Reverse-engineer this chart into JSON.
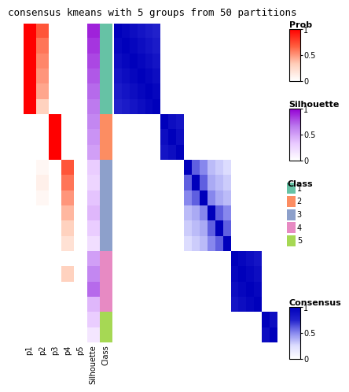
{
  "title": "consensus kmeans with 5 groups from 50 partitions",
  "n_samples": 21,
  "group_boundaries": [
    0,
    6,
    9,
    14,
    18,
    21
  ],
  "prob_values": [
    [
      1.0,
      1.0,
      1.0,
      1.0,
      1.0,
      1.0,
      0.0,
      0.0,
      0.0,
      0.0,
      0.0,
      0.0,
      0.0,
      0.0,
      0.0,
      0.0,
      0.0,
      0.0,
      0.0,
      0.0,
      0.0
    ],
    [
      0.7,
      0.6,
      0.55,
      0.5,
      0.45,
      0.3,
      0.0,
      0.0,
      0.0,
      0.05,
      0.1,
      0.05,
      0.0,
      0.0,
      0.0,
      0.0,
      0.0,
      0.0,
      0.0,
      0.0,
      0.0
    ],
    [
      0.0,
      0.0,
      0.0,
      0.0,
      0.0,
      0.0,
      1.0,
      1.0,
      1.0,
      0.0,
      0.0,
      0.0,
      0.0,
      0.0,
      0.0,
      0.0,
      0.0,
      0.0,
      0.0,
      0.0,
      0.0
    ],
    [
      0.0,
      0.0,
      0.0,
      0.0,
      0.0,
      0.0,
      0.0,
      0.0,
      0.0,
      0.7,
      0.6,
      0.5,
      0.4,
      0.3,
      0.2,
      0.0,
      0.3,
      0.0,
      0.0,
      0.0,
      0.0
    ],
    [
      0.0,
      0.0,
      0.0,
      0.0,
      0.0,
      0.0,
      0.0,
      0.0,
      0.0,
      0.0,
      0.0,
      0.0,
      0.0,
      0.0,
      0.0,
      0.0,
      0.0,
      0.0,
      0.0,
      0.0,
      0.0
    ]
  ],
  "silhouette_values": [
    0.9,
    0.85,
    0.8,
    0.75,
    0.7,
    0.65,
    0.6,
    0.55,
    0.5,
    0.3,
    0.25,
    0.35,
    0.4,
    0.3,
    0.2,
    0.5,
    0.6,
    0.7,
    0.4,
    0.3,
    0.15
  ],
  "class_labels": [
    1,
    1,
    1,
    1,
    1,
    1,
    2,
    2,
    2,
    3,
    3,
    3,
    3,
    3,
    3,
    4,
    4,
    4,
    4,
    5,
    5
  ],
  "class_colors": {
    "1": "#66C2A5",
    "2": "#FC8D62",
    "3": "#8DA0CB",
    "4": "#E78AC3",
    "5": "#A6D854"
  },
  "consensus_matrix": [
    [
      1.0,
      0.95,
      0.9,
      0.85,
      0.8,
      0.75,
      0.0,
      0.0,
      0.0,
      0.0,
      0.0,
      0.0,
      0.0,
      0.0,
      0.0,
      0.0,
      0.0,
      0.0,
      0.0,
      0.0,
      0.0
    ],
    [
      0.95,
      1.0,
      0.95,
      0.9,
      0.85,
      0.8,
      0.0,
      0.0,
      0.0,
      0.0,
      0.0,
      0.0,
      0.0,
      0.0,
      0.0,
      0.0,
      0.0,
      0.0,
      0.0,
      0.0,
      0.0
    ],
    [
      0.9,
      0.95,
      1.0,
      0.95,
      0.9,
      0.85,
      0.0,
      0.0,
      0.0,
      0.0,
      0.0,
      0.0,
      0.0,
      0.0,
      0.0,
      0.0,
      0.0,
      0.0,
      0.0,
      0.0,
      0.0
    ],
    [
      0.85,
      0.9,
      0.95,
      1.0,
      0.95,
      0.9,
      0.0,
      0.0,
      0.0,
      0.0,
      0.0,
      0.0,
      0.0,
      0.0,
      0.0,
      0.0,
      0.0,
      0.0,
      0.0,
      0.0,
      0.0
    ],
    [
      0.8,
      0.85,
      0.9,
      0.95,
      1.0,
      0.95,
      0.0,
      0.0,
      0.0,
      0.0,
      0.0,
      0.0,
      0.0,
      0.0,
      0.0,
      0.0,
      0.0,
      0.0,
      0.0,
      0.0,
      0.0
    ],
    [
      0.75,
      0.8,
      0.85,
      0.9,
      0.95,
      1.0,
      0.0,
      0.0,
      0.0,
      0.0,
      0.0,
      0.0,
      0.0,
      0.0,
      0.0,
      0.0,
      0.0,
      0.0,
      0.0,
      0.0,
      0.0
    ],
    [
      0.0,
      0.0,
      0.0,
      0.0,
      0.0,
      0.0,
      1.0,
      0.9,
      0.85,
      0.0,
      0.0,
      0.0,
      0.0,
      0.0,
      0.0,
      0.0,
      0.0,
      0.0,
      0.0,
      0.0,
      0.0
    ],
    [
      0.0,
      0.0,
      0.0,
      0.0,
      0.0,
      0.0,
      0.9,
      1.0,
      0.9,
      0.0,
      0.0,
      0.0,
      0.0,
      0.0,
      0.0,
      0.0,
      0.0,
      0.0,
      0.0,
      0.0,
      0.0
    ],
    [
      0.0,
      0.0,
      0.0,
      0.0,
      0.0,
      0.0,
      0.85,
      0.9,
      1.0,
      0.0,
      0.0,
      0.0,
      0.0,
      0.0,
      0.0,
      0.0,
      0.0,
      0.0,
      0.0,
      0.0,
      0.0
    ],
    [
      0.0,
      0.0,
      0.0,
      0.0,
      0.0,
      0.0,
      0.0,
      0.0,
      0.0,
      1.0,
      0.6,
      0.5,
      0.35,
      0.3,
      0.25,
      0.0,
      0.0,
      0.0,
      0.0,
      0.0,
      0.0
    ],
    [
      0.0,
      0.0,
      0.0,
      0.0,
      0.0,
      0.0,
      0.0,
      0.0,
      0.0,
      0.6,
      1.0,
      0.6,
      0.4,
      0.35,
      0.3,
      0.0,
      0.0,
      0.0,
      0.0,
      0.0,
      0.0
    ],
    [
      0.0,
      0.0,
      0.0,
      0.0,
      0.0,
      0.0,
      0.0,
      0.0,
      0.0,
      0.5,
      0.6,
      1.0,
      0.5,
      0.4,
      0.35,
      0.0,
      0.0,
      0.0,
      0.0,
      0.0,
      0.0
    ],
    [
      0.0,
      0.0,
      0.0,
      0.0,
      0.0,
      0.0,
      0.0,
      0.0,
      0.0,
      0.35,
      0.4,
      0.5,
      1.0,
      0.6,
      0.5,
      0.0,
      0.0,
      0.0,
      0.0,
      0.0,
      0.0
    ],
    [
      0.0,
      0.0,
      0.0,
      0.0,
      0.0,
      0.0,
      0.0,
      0.0,
      0.0,
      0.3,
      0.35,
      0.4,
      0.6,
      1.0,
      0.6,
      0.0,
      0.0,
      0.0,
      0.0,
      0.0,
      0.0
    ],
    [
      0.0,
      0.0,
      0.0,
      0.0,
      0.0,
      0.0,
      0.0,
      0.0,
      0.0,
      0.25,
      0.3,
      0.35,
      0.5,
      0.6,
      1.0,
      0.0,
      0.0,
      0.0,
      0.0,
      0.0,
      0.0
    ],
    [
      0.0,
      0.0,
      0.0,
      0.0,
      0.0,
      0.0,
      0.0,
      0.0,
      0.0,
      0.0,
      0.0,
      0.0,
      0.0,
      0.0,
      0.0,
      1.0,
      0.95,
      0.9,
      0.85,
      0.0,
      0.0
    ],
    [
      0.0,
      0.0,
      0.0,
      0.0,
      0.0,
      0.0,
      0.0,
      0.0,
      0.0,
      0.0,
      0.0,
      0.0,
      0.0,
      0.0,
      0.0,
      0.95,
      1.0,
      0.95,
      0.9,
      0.0,
      0.0
    ],
    [
      0.0,
      0.0,
      0.0,
      0.0,
      0.0,
      0.0,
      0.0,
      0.0,
      0.0,
      0.0,
      0.0,
      0.0,
      0.0,
      0.0,
      0.0,
      0.9,
      0.95,
      1.0,
      0.95,
      0.0,
      0.0
    ],
    [
      0.0,
      0.0,
      0.0,
      0.0,
      0.0,
      0.0,
      0.0,
      0.0,
      0.0,
      0.0,
      0.0,
      0.0,
      0.0,
      0.0,
      0.0,
      0.85,
      0.9,
      0.95,
      1.0,
      0.0,
      0.0
    ],
    [
      0.0,
      0.0,
      0.0,
      0.0,
      0.0,
      0.0,
      0.0,
      0.0,
      0.0,
      0.0,
      0.0,
      0.0,
      0.0,
      0.0,
      0.0,
      0.0,
      0.0,
      0.0,
      0.0,
      1.0,
      0.9
    ],
    [
      0.0,
      0.0,
      0.0,
      0.0,
      0.0,
      0.0,
      0.0,
      0.0,
      0.0,
      0.0,
      0.0,
      0.0,
      0.0,
      0.0,
      0.0,
      0.0,
      0.0,
      0.0,
      0.0,
      0.9,
      1.0
    ]
  ],
  "background_color": "#FFFFFF",
  "prob_labels": [
    "p1",
    "p2",
    "p3",
    "p4",
    "p5"
  ],
  "title_fontsize": 9,
  "label_fontsize": 7
}
